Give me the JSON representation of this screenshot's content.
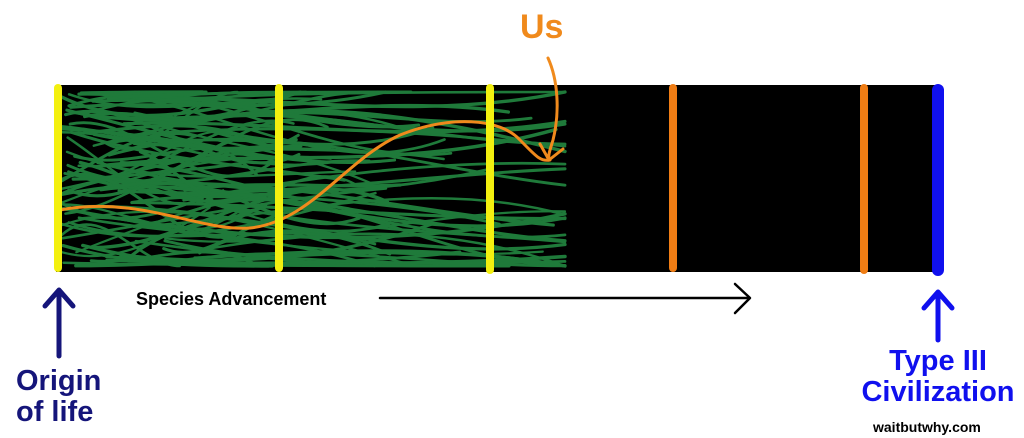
{
  "colors": {
    "background": "#ffffff",
    "band": "#000000",
    "strands": "#1f7a3a",
    "us_path": "#f08a1c",
    "filter_early": "#f3f00f",
    "filter_late": "#f07d14",
    "endpoint": "#1010ee",
    "origin_text": "#15157a",
    "type3_text": "#1010ee",
    "us_text": "#f08a1c",
    "arrow": "#000000",
    "text_dark": "#000000"
  },
  "labels": {
    "us": "Us",
    "species_advancement": "Species Advancement",
    "origin": [
      "Origin",
      "of life"
    ],
    "type_iii": [
      "Type III",
      "Civilization"
    ],
    "source": "waitbutwhy.com"
  },
  "icons": {
    "origin_arrow": "up-arrow-icon",
    "type_iii_arrow": "up-arrow-icon",
    "advancement_arrow": "right-arrow-icon",
    "us_pointer": "curved-arrow-icon"
  },
  "filters": [
    {
      "color": "yellow"
    },
    {
      "color": "yellow"
    },
    {
      "color": "yellow"
    },
    {
      "color": "orange"
    },
    {
      "color": "orange"
    }
  ]
}
